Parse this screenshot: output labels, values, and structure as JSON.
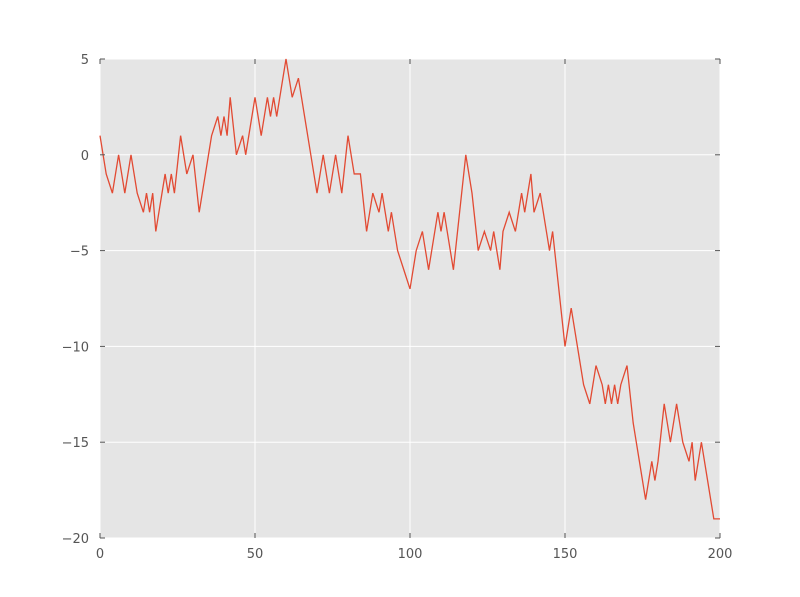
{
  "chart_data": {
    "type": "line",
    "title": "",
    "xlabel": "",
    "ylabel": "",
    "xlim": [
      0,
      200
    ],
    "ylim": [
      -20,
      5
    ],
    "xticks": [
      0,
      50,
      100,
      150,
      200
    ],
    "xtick_labels": [
      "0",
      "50",
      "100",
      "150",
      "200"
    ],
    "yticks": [
      5,
      0,
      -5,
      -10,
      -15,
      -20
    ],
    "ytick_labels": [
      "5",
      "0",
      "−5",
      "−10",
      "−15",
      "−20"
    ],
    "grid": true,
    "legend": "none",
    "colors": {
      "line": "#e24a33",
      "plot_background": "#e5e5e5",
      "grid": "#ffffff",
      "tick_text": "#555555"
    },
    "series": [
      {
        "x": [
          0,
          2,
          4,
          6,
          8,
          10,
          12,
          14,
          15,
          16,
          17,
          18,
          20,
          21,
          22,
          23,
          24,
          26,
          28,
          30,
          32,
          34,
          36,
          38,
          39,
          40,
          41,
          42,
          44,
          46,
          47,
          48,
          49,
          50,
          52,
          54,
          55,
          56,
          57,
          58,
          59,
          60,
          62,
          64,
          65,
          66,
          68,
          70,
          72,
          74,
          76,
          78,
          80,
          82,
          84,
          86,
          88,
          90,
          91,
          92,
          93,
          94,
          95,
          96,
          98,
          100,
          102,
          104,
          106,
          108,
          109,
          110,
          111,
          112,
          114,
          116,
          118,
          120,
          122,
          124,
          126,
          127,
          128,
          129,
          130,
          132,
          134,
          135,
          136,
          137,
          138,
          139,
          140,
          142,
          143,
          144,
          145,
          146,
          148,
          150,
          152,
          154,
          156,
          158,
          160,
          162,
          163,
          164,
          165,
          166,
          167,
          168,
          170,
          172,
          174,
          176,
          178,
          179,
          180,
          182,
          184,
          186,
          188,
          190,
          191,
          192,
          194,
          196,
          198,
          200
        ],
        "values": [
          1,
          -1,
          -2,
          0,
          -2,
          0,
          -2,
          -3,
          -2,
          -3,
          -2,
          -4,
          -2,
          -1,
          -2,
          -1,
          -2,
          1,
          -1,
          0,
          -3,
          -1,
          1,
          2,
          1,
          2,
          1,
          3,
          0,
          1,
          0,
          1,
          2,
          3,
          1,
          3,
          2,
          3,
          2,
          3,
          4,
          5,
          3,
          4,
          3,
          2,
          0,
          -2,
          0,
          -2,
          0,
          -2,
          1,
          -1,
          -1,
          -4,
          -2,
          -3,
          -2,
          -3,
          -4,
          -3,
          -4,
          -5,
          -6,
          -7,
          -5,
          -4,
          -6,
          -4,
          -3,
          -4,
          -3,
          -4,
          -6,
          -3,
          0,
          -2,
          -5,
          -4,
          -5,
          -4,
          -5,
          -6,
          -4,
          -3,
          -4,
          -3,
          -2,
          -3,
          -2,
          -1,
          -3,
          -2,
          -3,
          -4,
          -5,
          -4,
          -7,
          -10,
          -8,
          -10,
          -12,
          -13,
          -11,
          -12,
          -13,
          -12,
          -13,
          -12,
          -13,
          -12,
          -11,
          -14,
          -16,
          -18,
          -16,
          -17,
          -16,
          -13,
          -15,
          -13,
          -15,
          -16,
          -15,
          -17,
          -15,
          -17,
          -19,
          -19
        ]
      }
    ]
  }
}
